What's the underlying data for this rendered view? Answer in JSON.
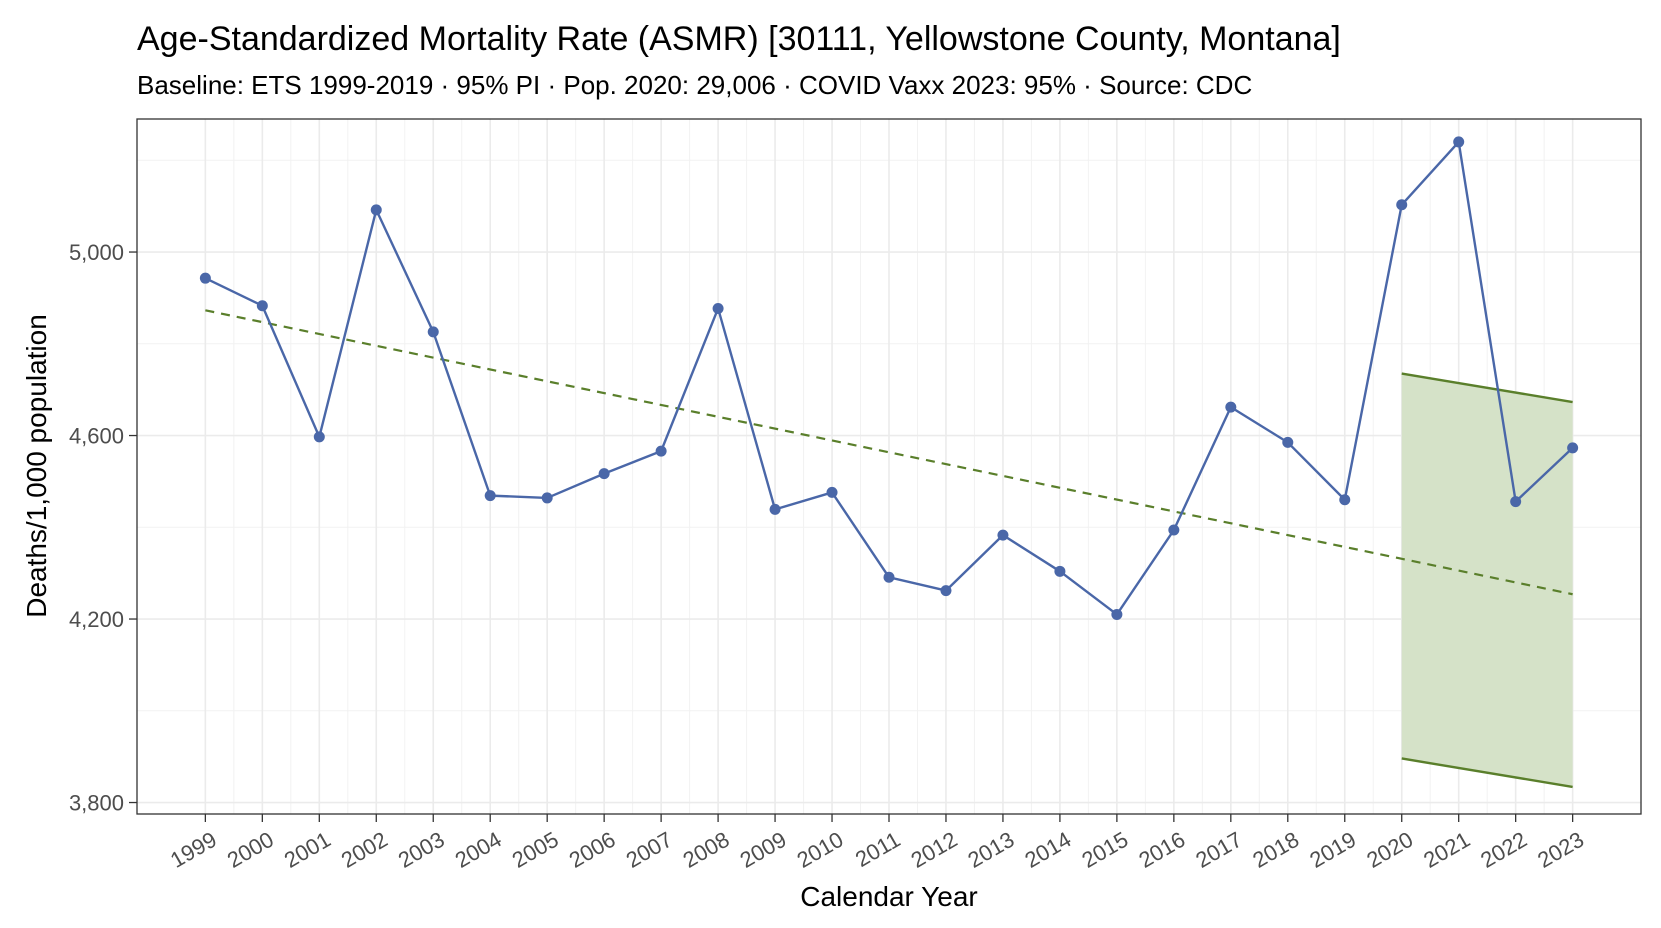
{
  "chart_data": {
    "type": "line",
    "title": "Age-Standardized Mortality Rate (ASMR) [30111, Yellowstone County, Montana]",
    "subtitle": "Baseline: ETS 1999-2019 · 95% PI · Pop. 2020: 29,006 · COVID Vaxx 2023: 95% · Source: CDC",
    "xlabel": "Calendar Year",
    "ylabel": "Deaths/1,000 population",
    "x": [
      1999,
      2000,
      2001,
      2002,
      2003,
      2004,
      2005,
      2006,
      2007,
      2008,
      2009,
      2010,
      2011,
      2012,
      2013,
      2014,
      2015,
      2016,
      2017,
      2018,
      2019,
      2020,
      2021,
      2022,
      2023
    ],
    "x_tick_labels": [
      "1999",
      "2000",
      "2001",
      "2002",
      "2003",
      "2004",
      "2005",
      "2006",
      "2007",
      "2008",
      "2009",
      "2010",
      "2011",
      "2012",
      "2013",
      "2014",
      "2015",
      "2016",
      "2017",
      "2018",
      "2019",
      "2020",
      "2021",
      "2022",
      "2023"
    ],
    "series": [
      {
        "values": [
          4943,
          4883,
          4597,
          5092,
          4826,
          4469,
          4464,
          4517,
          4566,
          4877,
          4439,
          4476,
          4291,
          4262,
          4383,
          4304,
          4210,
          4394,
          4662,
          4585,
          4460,
          5103,
          5240,
          4456,
          4573
        ],
        "color": "#4a67a8"
      }
    ],
    "baseline": {
      "x": [
        1999,
        2023
      ],
      "y": [
        4873,
        4254
      ],
      "color": "#5a7f2b",
      "style": "dashed"
    },
    "prediction_interval": {
      "x": [
        2020,
        2023
      ],
      "upper": [
        4735,
        4673
      ],
      "lower": [
        3896,
        3834
      ],
      "fill_color": "#d5e2c8",
      "line_color": "#5a7f2b"
    },
    "ylim": [
      3775,
      5290
    ],
    "xlim": [
      1997.8,
      2024.2
    ],
    "y_ticks": [
      3800,
      4200,
      4600,
      5000
    ],
    "y_tick_labels": [
      "3,800",
      "4,200",
      "4,600",
      "5,000"
    ],
    "grid": true,
    "legend": "none"
  }
}
